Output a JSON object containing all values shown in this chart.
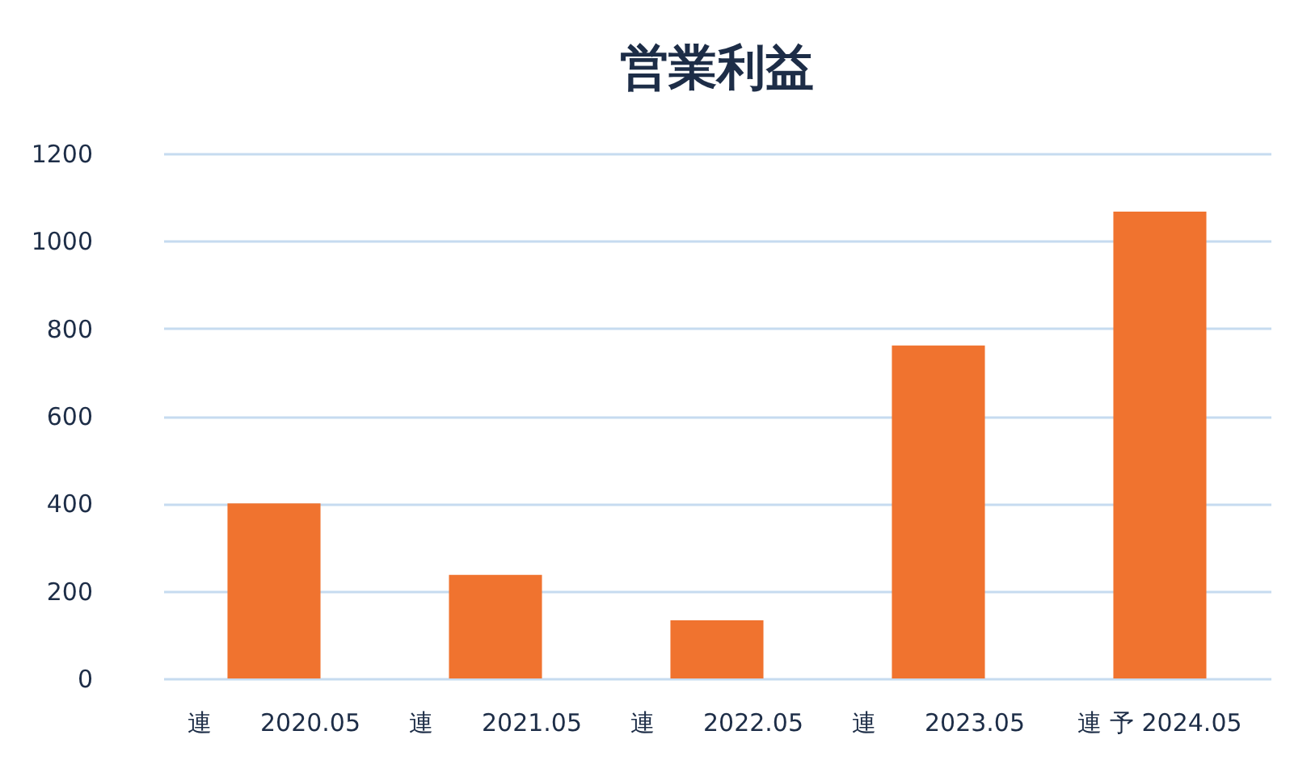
{
  "chart_data": {
    "type": "bar",
    "title": "営業利益",
    "categories": [
      "連　　2020.05",
      "連　　2021.05",
      "連　　2022.05",
      "連　　2023.05",
      "連 予 2024.05"
    ],
    "values": [
      400,
      237,
      133,
      761,
      1067
    ],
    "color": "#f0732f",
    "ylim": [
      0,
      1200
    ],
    "yticks": [
      0,
      200,
      400,
      600,
      800,
      1000,
      1200
    ],
    "grid": "y"
  }
}
